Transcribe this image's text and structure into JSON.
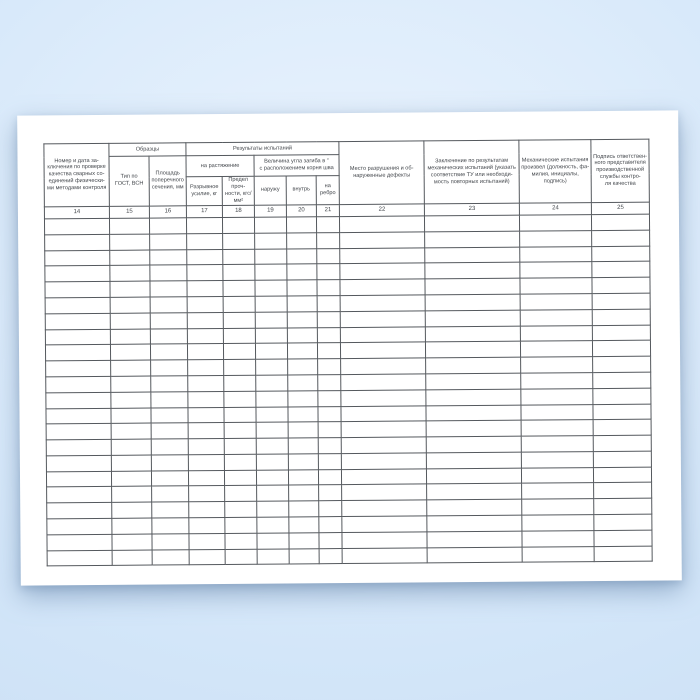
{
  "scene": {
    "background_color": "#d7e8fa",
    "paper_color": "#ffffff",
    "table_border_color": "#55595e",
    "text_color": "#43474c"
  },
  "table": {
    "groups": {
      "samples": "Образцы",
      "results": "Результаты испытаний",
      "tension": "на растяжение",
      "bend": "Величина угла загиба в °\nс расположением корня шва"
    },
    "headers": {
      "col14": "Номер и дата за-\nключения по проверке\nкачества сварных со-\nединений физически-\nми методами контроля",
      "col15": "Тип по\nГОСТ, ВСН",
      "col16": "Площадь\nпоперечного\nсечения, мм",
      "col17": "Разрывное\nусилие, кг",
      "col18": "Предел проч-\nности, кгс/мм²",
      "col19": "наружу",
      "col20": "внутрь",
      "col21": "на\nребро",
      "col22": "Место разрушения и об-\nнаруженные дефекты",
      "col23": "Заключение по результатам\nмеханических испытаний (указать\nсоответствие ТУ или необходи-\nмость повторных испытаний)",
      "col24": "Механические испытания\nпроизвел (должность, фа-\nмилия, инициалы, подпись)",
      "col25": "Подпись ответствен-\nного представителя\nпроизводственной\nслужбы контро-\nля качества"
    },
    "numbers": [
      "14",
      "15",
      "16",
      "17",
      "18",
      "19",
      "20",
      "21",
      "22",
      "23",
      "24",
      "25"
    ],
    "empty_row_count": 22
  }
}
